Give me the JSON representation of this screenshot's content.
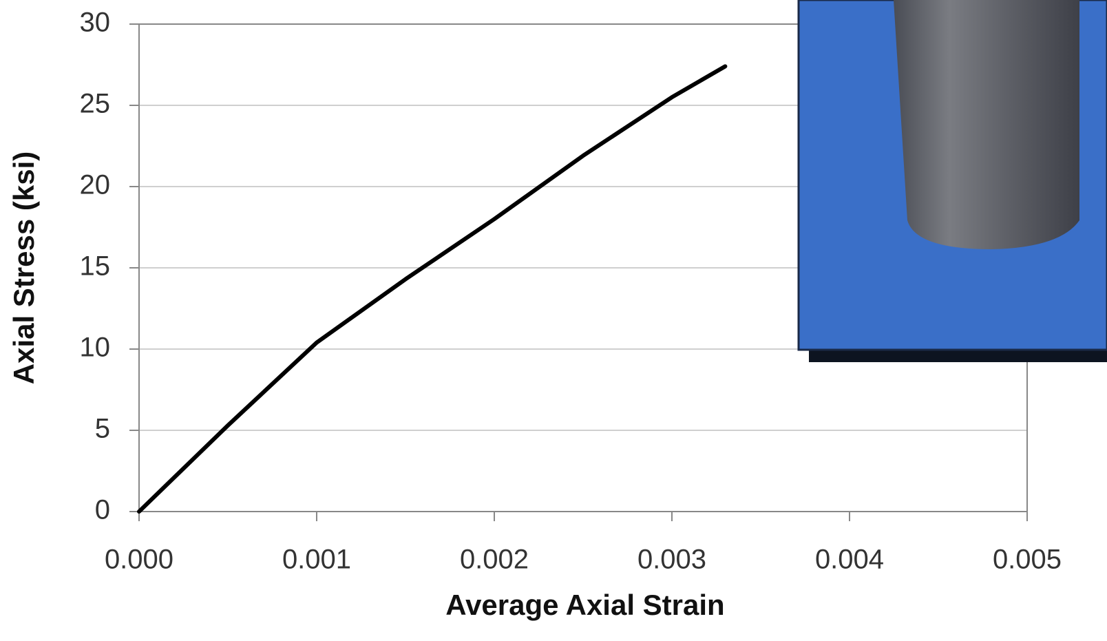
{
  "chart_data": {
    "type": "line",
    "x_label": "Average Axial Strain",
    "y_label": "Axial Stress (ksi)",
    "x": [
      0,
      0.0005,
      0.001,
      0.0015,
      0.002,
      0.0025,
      0.003,
      0.0033
    ],
    "series": [
      {
        "color": "#000000",
        "values": [
          0,
          5.3,
          10.4,
          14.3,
          18.0,
          21.9,
          25.5,
          27.4
        ]
      }
    ],
    "xlim": [
      0,
      0.005
    ],
    "xticks": [
      {
        "value": 0,
        "label": "0.000"
      },
      0.001,
      0.002,
      0.003,
      0.004,
      0.005
    ],
    "ylim": [
      0,
      30
    ],
    "yticks": [
      0,
      5,
      10,
      15,
      20,
      25,
      30
    ],
    "grid": true
  }
}
